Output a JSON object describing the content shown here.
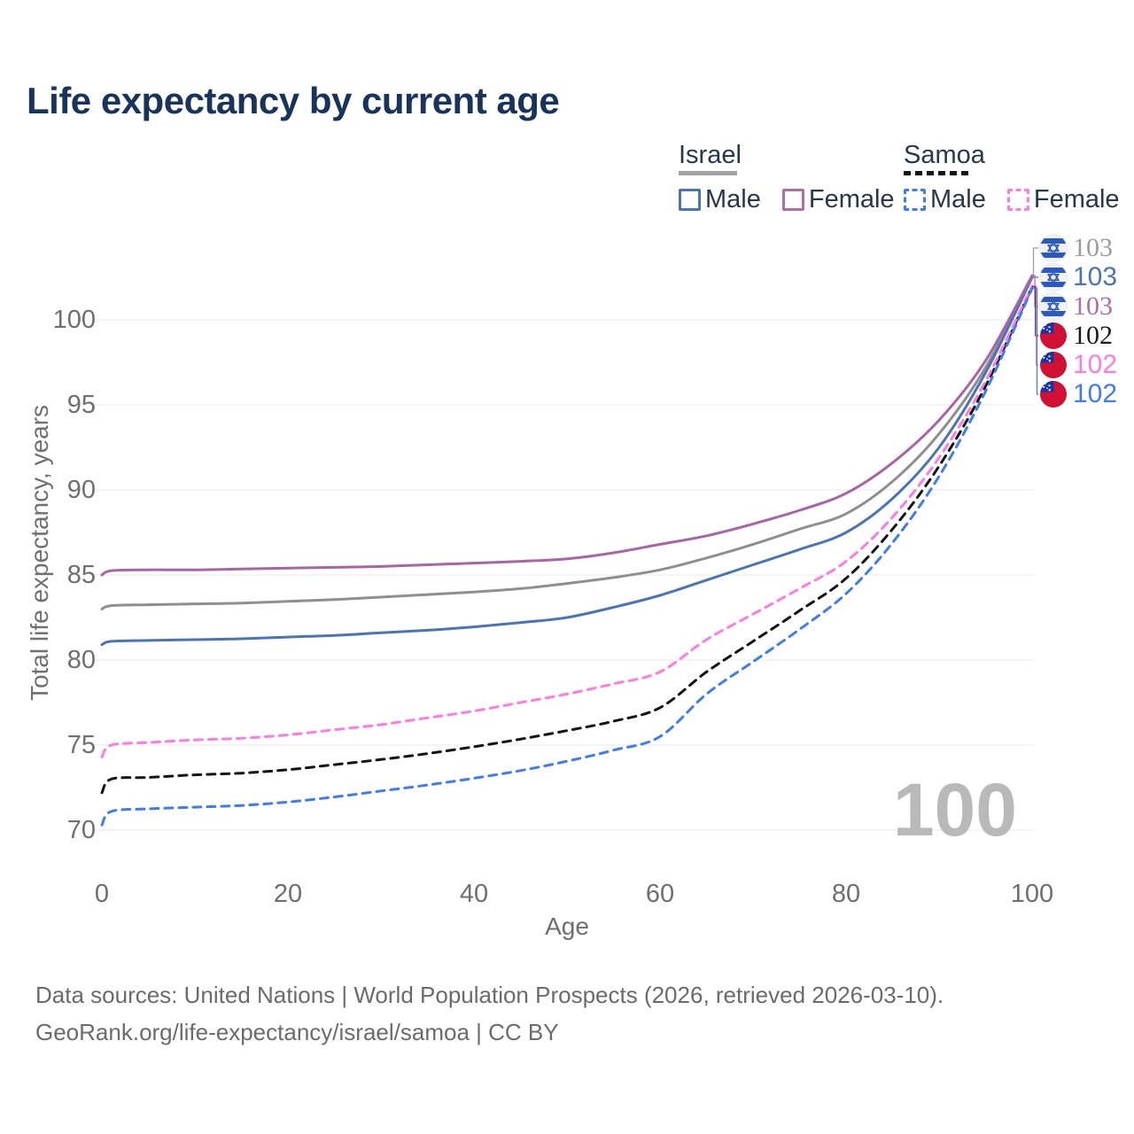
{
  "title": "Life expectancy by current age",
  "legend": {
    "groups": [
      {
        "label": "Israel",
        "underline_style": "solid",
        "underline_color": "#a3a3a3",
        "items": [
          {
            "label": "Male",
            "color": "#4a74b9",
            "dashed": false
          },
          {
            "label": "Female",
            "color": "#b06cab",
            "dashed": false
          }
        ]
      },
      {
        "label": "Samoa",
        "underline_style": "dashed",
        "underline_color": "#141414",
        "items": [
          {
            "label": "Male",
            "color": "#3d7cf4",
            "dashed": true
          },
          {
            "label": "Female",
            "color": "#ff7ae6",
            "dashed": true
          }
        ]
      }
    ]
  },
  "watermark": "100",
  "footer": {
    "line1": "Data sources: United Nations | World Population Prospects (2026, retrieved 2026-03-10).",
    "line2": "GeoRank.org/life-expectancy/israel/samoa | CC BY"
  },
  "chart_data": {
    "type": "line",
    "title": "Life expectancy by current age",
    "xlabel": "Age",
    "ylabel": "Total life expectancy, years",
    "x_ticks": [
      0,
      20,
      40,
      60,
      80,
      100
    ],
    "y_ticks": [
      70,
      75,
      80,
      85,
      90,
      95,
      100
    ],
    "xlim": [
      0,
      100
    ],
    "ylim": [
      70,
      103
    ],
    "grid": "horizontal",
    "ages": [
      0,
      1,
      5,
      10,
      15,
      20,
      25,
      30,
      35,
      40,
      45,
      50,
      55,
      60,
      65,
      70,
      75,
      80,
      85,
      90,
      95,
      100
    ],
    "series": [
      {
        "name": "Israel total",
        "flag": "israel",
        "color": "#8f8f8f",
        "dashed": false,
        "end_label": "103",
        "label_color": "#9c9c9c",
        "label_serif": true,
        "values": [
          83.0,
          83.2,
          83.25,
          83.3,
          83.35,
          83.45,
          83.55,
          83.7,
          83.85,
          84.0,
          84.2,
          84.5,
          84.85,
          85.3,
          86.0,
          86.8,
          87.7,
          88.6,
          90.5,
          93.3,
          97.2,
          102.55
        ]
      },
      {
        "name": "Israel male",
        "flag": "israel",
        "color": "#4a74b9",
        "dashed": false,
        "end_label": "103",
        "label_color": "#4a74b9",
        "label_serif": false,
        "values": [
          80.9,
          81.1,
          81.15,
          81.2,
          81.25,
          81.35,
          81.45,
          81.6,
          81.75,
          81.95,
          82.2,
          82.5,
          83.1,
          83.8,
          84.7,
          85.6,
          86.5,
          87.5,
          89.5,
          92.5,
          96.9,
          102.5
        ]
      },
      {
        "name": "Israel female",
        "flag": "israel",
        "color": "#a963a6",
        "dashed": false,
        "end_label": "103",
        "label_color": "#b06cab",
        "label_serif": true,
        "values": [
          85.0,
          85.25,
          85.3,
          85.3,
          85.35,
          85.4,
          85.45,
          85.5,
          85.6,
          85.7,
          85.8,
          85.95,
          86.3,
          86.8,
          87.3,
          88.0,
          88.8,
          89.8,
          91.6,
          94.1,
          97.6,
          102.6
        ]
      },
      {
        "name": "Samoa total",
        "flag": "samoa",
        "color": "#141414",
        "dashed": true,
        "end_label": "102",
        "label_color": "#1a1a1a",
        "label_serif": true,
        "values": [
          72.2,
          73.0,
          73.1,
          73.25,
          73.35,
          73.55,
          73.85,
          74.15,
          74.5,
          74.9,
          75.35,
          75.85,
          76.4,
          77.2,
          79.3,
          81.1,
          82.9,
          84.8,
          87.7,
          91.4,
          96.1,
          101.95
        ]
      },
      {
        "name": "Samoa female",
        "flag": "samoa",
        "color": "#ff7ae6",
        "dashed": true,
        "end_label": "102",
        "label_color": "#ff7ae6",
        "label_serif": false,
        "values": [
          74.3,
          75.0,
          75.15,
          75.3,
          75.4,
          75.6,
          75.9,
          76.2,
          76.6,
          77.0,
          77.5,
          78.0,
          78.6,
          79.3,
          81.2,
          82.7,
          84.2,
          85.8,
          88.4,
          91.9,
          96.4,
          102.0
        ]
      },
      {
        "name": "Samoa male",
        "flag": "samoa",
        "color": "#3d7cf4",
        "dashed": true,
        "end_label": "102",
        "label_color": "#3d7cf4",
        "label_serif": false,
        "values": [
          70.3,
          71.1,
          71.25,
          71.35,
          71.45,
          71.65,
          71.95,
          72.3,
          72.65,
          73.05,
          73.5,
          74.05,
          74.7,
          75.5,
          78.0,
          79.9,
          81.8,
          83.9,
          86.9,
          90.8,
          95.8,
          101.85
        ]
      }
    ]
  }
}
